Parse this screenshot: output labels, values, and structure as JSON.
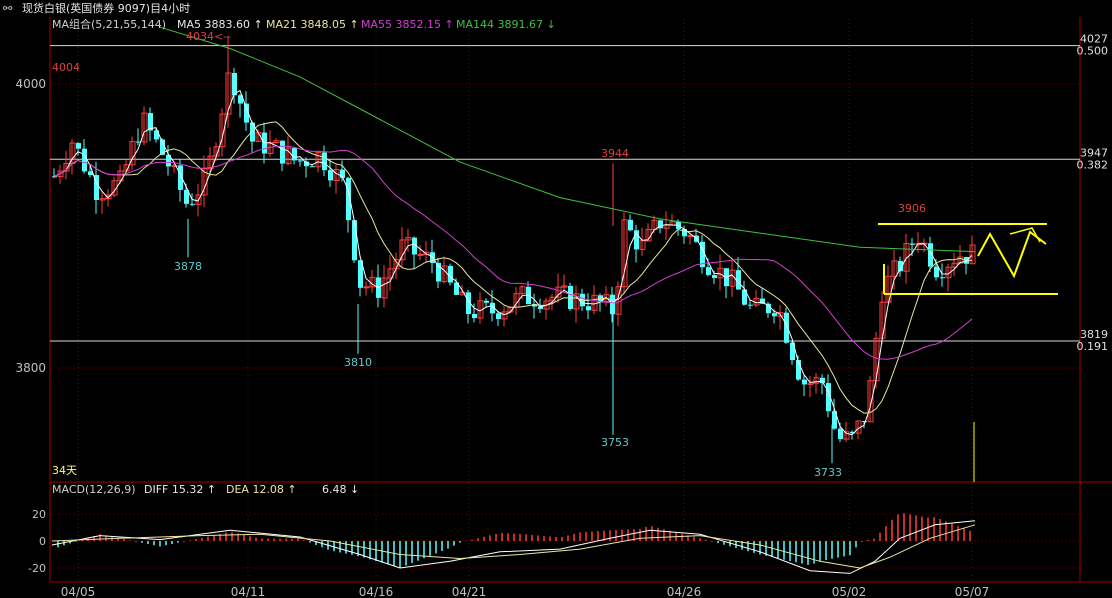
{
  "title": "现货白银(英国债券 9097)目4小时",
  "title_icon": "link-icon",
  "main_legend": [
    {
      "text": "MA组合(5,21,55,144)",
      "color": "#d0d0d0"
    },
    {
      "text": "MA5 3883.60 ↑",
      "color": "#e8e8e8"
    },
    {
      "text": "MA21 3848.05 ↑",
      "color": "#e8e8a0"
    },
    {
      "text": "MA55 3852.15 ↑",
      "color": "#d040d0"
    },
    {
      "text": "MA144 3891.67 ↓",
      "color": "#40c040"
    }
  ],
  "macd_legend": [
    {
      "text": "MACD(12,26,9)",
      "color": "#d0d0d0"
    },
    {
      "text": "DIFF 15.32 ↑",
      "color": "#e8e8e8"
    },
    {
      "text": "DEA 12.08 ↑",
      "color": "#e8e8a0"
    },
    {
      "text": "6.48 ↓",
      "color": "#e8e8e8"
    }
  ],
  "period_label": "34天",
  "chart_data": {
    "type": "candlestick",
    "price_ylim": [
      3700,
      4060
    ],
    "y_ticks": [
      4000,
      3800
    ],
    "x_ticks": [
      "04/05",
      "04/11",
      "04/16",
      "04/21",
      "04/26",
      "05/02",
      "05/07"
    ],
    "fib_levels": [
      {
        "price": 4027,
        "ratio": "0.500"
      },
      {
        "price": 3947,
        "ratio": "0.382"
      },
      {
        "price": 3819,
        "ratio": "0.191"
      }
    ],
    "price_annotations": [
      "4004",
      "4034",
      "3878",
      "3810",
      "3944",
      "3753",
      "3733",
      "3906"
    ],
    "macd_ylim": [
      -25,
      30
    ],
    "macd_ticks": [
      20,
      0,
      -20
    ],
    "colors": {
      "up": "#ff3c3c",
      "down": "#54ffff",
      "ma5": "#ffffff",
      "ma21": "#e8e8a0",
      "ma55": "#d040d0",
      "ma144": "#40c040",
      "drawing": "#ffff00"
    }
  }
}
